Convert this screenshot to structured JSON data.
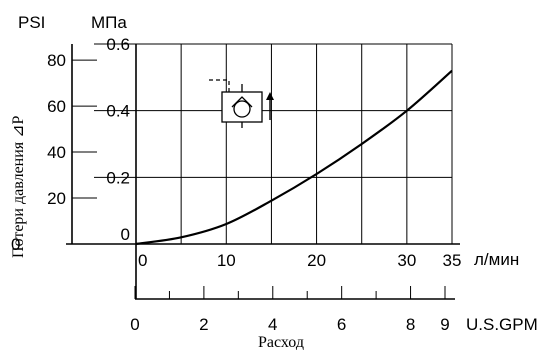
{
  "chart_data": {
    "type": "line",
    "title": "",
    "ylabel": "Потери давления ⊿P",
    "xlabel": "Расход",
    "y_units": {
      "psi": "PSI",
      "mpa": "МПа"
    },
    "x_units": {
      "lpm": "л/мин",
      "gpm": "U.S.GPM"
    },
    "xlim": [
      0,
      35
    ],
    "ylim_mpa": [
      0,
      0.6
    ],
    "ylim_psi": [
      0,
      87
    ],
    "x_ticks_lpm": [
      "0",
      "10",
      "20",
      "30",
      "35"
    ],
    "x_ticks_lpm_values": [
      0,
      10,
      20,
      30,
      35
    ],
    "x_grid_lpm": [
      0,
      5,
      10,
      15,
      20,
      25,
      30,
      35
    ],
    "y_ticks_mpa": [
      "0",
      "0.2",
      "0.4",
      "0.6"
    ],
    "y_ticks_mpa_values": [
      0,
      0.2,
      0.4,
      0.6
    ],
    "y_grid_mpa": [
      0.2,
      0.4
    ],
    "y_ticks_psi": [
      "20",
      "40",
      "60",
      "80"
    ],
    "y_ticks_psi_values": [
      20,
      40,
      60,
      80
    ],
    "gpm_ticks": [
      "0",
      "2",
      "4",
      "6",
      "8",
      "9"
    ],
    "gpm_tick_values": [
      0,
      2,
      4,
      6,
      8,
      9
    ],
    "gpm_minor_values": [
      1,
      3,
      5,
      7
    ],
    "grid": true,
    "series": [
      {
        "name": "",
        "x": [
          0,
          5,
          10,
          15,
          20,
          25,
          30,
          35
        ],
        "y": [
          0,
          0.02,
          0.06,
          0.13,
          0.21,
          0.3,
          0.4,
          0.52
        ]
      }
    ]
  }
}
